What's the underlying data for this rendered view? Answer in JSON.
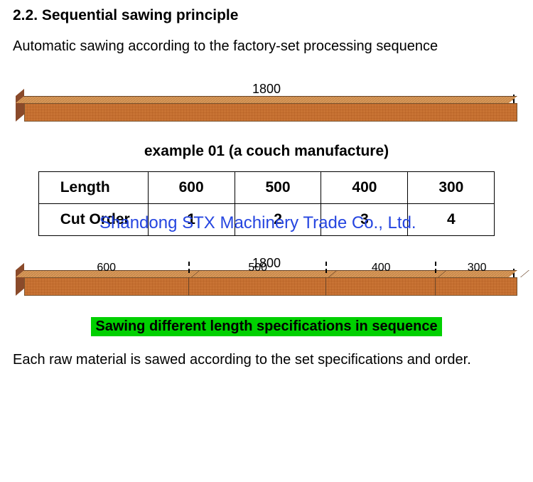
{
  "section_title": "2.2. Sequential sawing principle",
  "intro_text": "Automatic sawing according to the factory-set processing sequence",
  "board_full": {
    "total_length": 1800,
    "total_label": "1800",
    "colors": {
      "face": "#e2ab73",
      "edge": "#7a5530",
      "end": "#8a4a2a"
    }
  },
  "example_caption": "example 01 (a couch manufacture)",
  "watermark": "Shandong STX Machinery Trade Co., Ltd.",
  "cut_table": {
    "row1_label": "Length",
    "row2_label": "Cut Order",
    "columns": [
      {
        "length": "600",
        "order": "1"
      },
      {
        "length": "500",
        "order": "2"
      },
      {
        "length": "400",
        "order": "3"
      },
      {
        "length": "300",
        "order": "4"
      }
    ]
  },
  "board_segmented": {
    "total_length": 1800,
    "total_label": "1800",
    "segments": [
      {
        "label": "600",
        "length": 600
      },
      {
        "label": "500",
        "length": 500
      },
      {
        "label": "400",
        "length": 400
      },
      {
        "label": "300",
        "length": 300
      }
    ]
  },
  "highlight_text": "Sawing different length specifications in sequence",
  "outro_text": "Each raw material is sawed according to the set specifications and order."
}
